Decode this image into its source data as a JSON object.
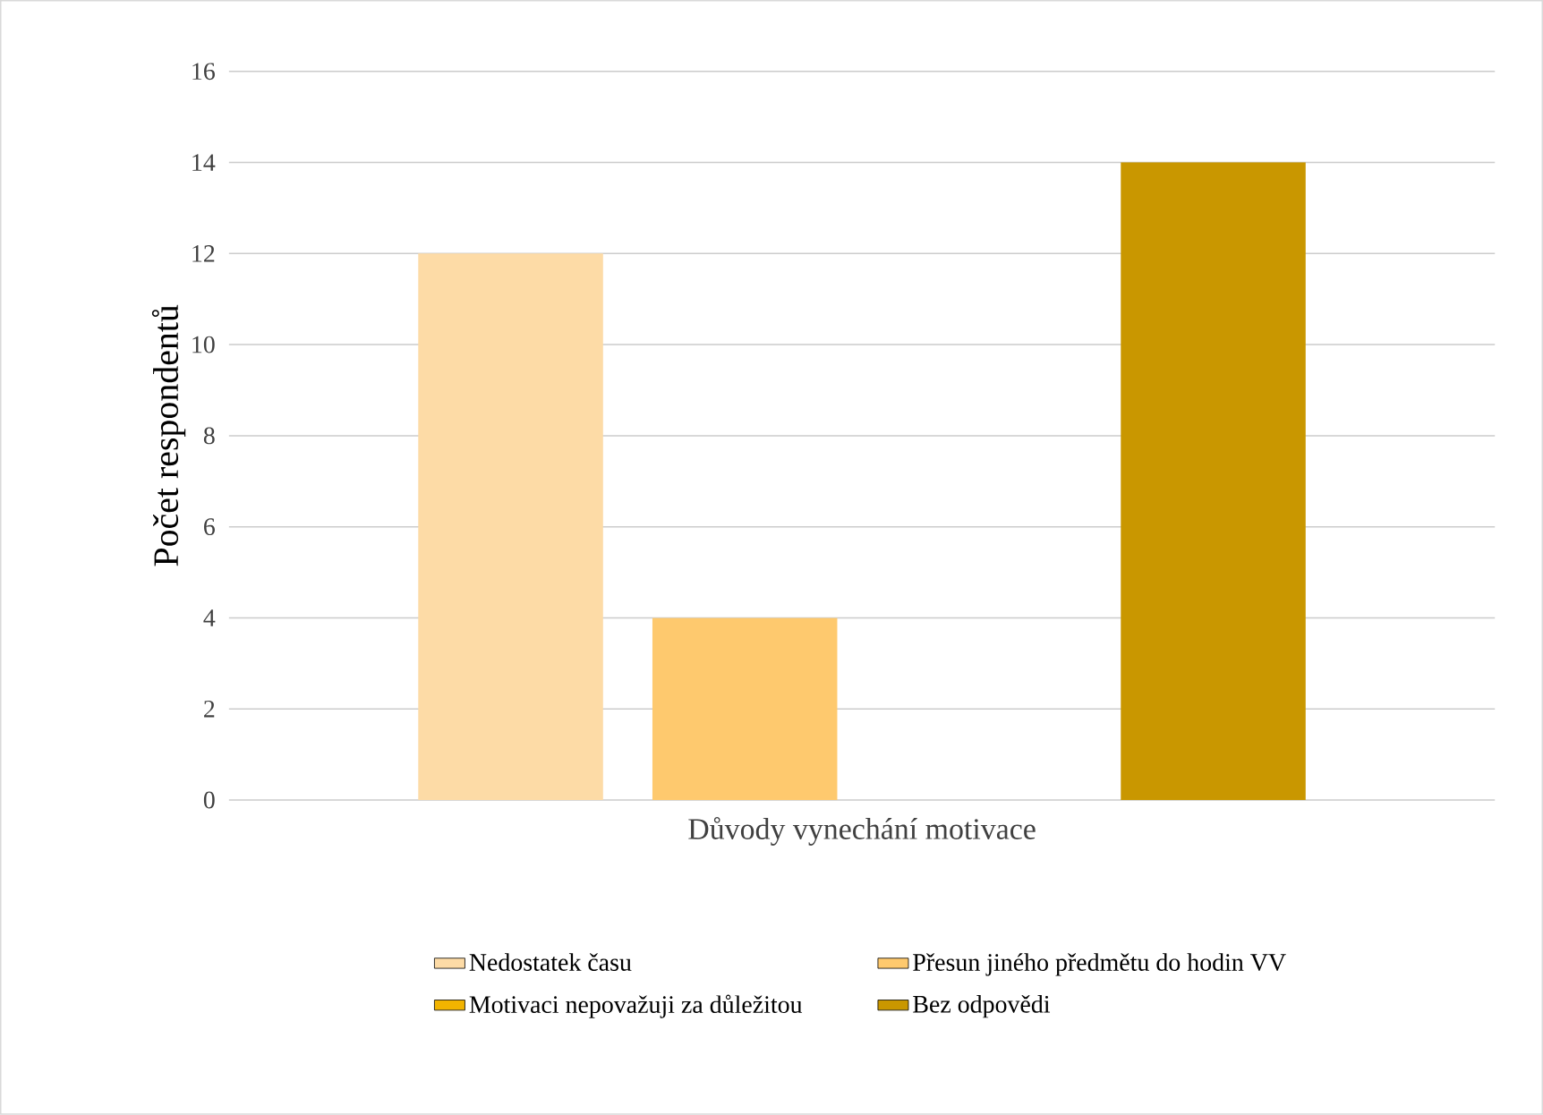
{
  "chart_data": {
    "type": "bar",
    "xlabel": null,
    "ylabel": "Počet respondentů",
    "categories": [
      "Důvody vynechání motivace"
    ],
    "series": [
      {
        "name": "Nedostatek času",
        "color": "#fddba6",
        "values": [
          12
        ]
      },
      {
        "name": "Přesun jiného předmětu do hodin VV",
        "color": "#fec96e",
        "values": [
          4
        ]
      },
      {
        "name": "Motivaci nepovažuji za důležitou",
        "color": "#f2b400",
        "values": [
          0
        ]
      },
      {
        "name": "Bez odpovědi",
        "color": "#c99700",
        "values": [
          14
        ]
      }
    ],
    "ylim": [
      0,
      16
    ],
    "yticks": [
      0,
      2,
      4,
      6,
      8,
      10,
      12,
      14,
      16
    ],
    "grid": "y",
    "legend": "bottom"
  }
}
